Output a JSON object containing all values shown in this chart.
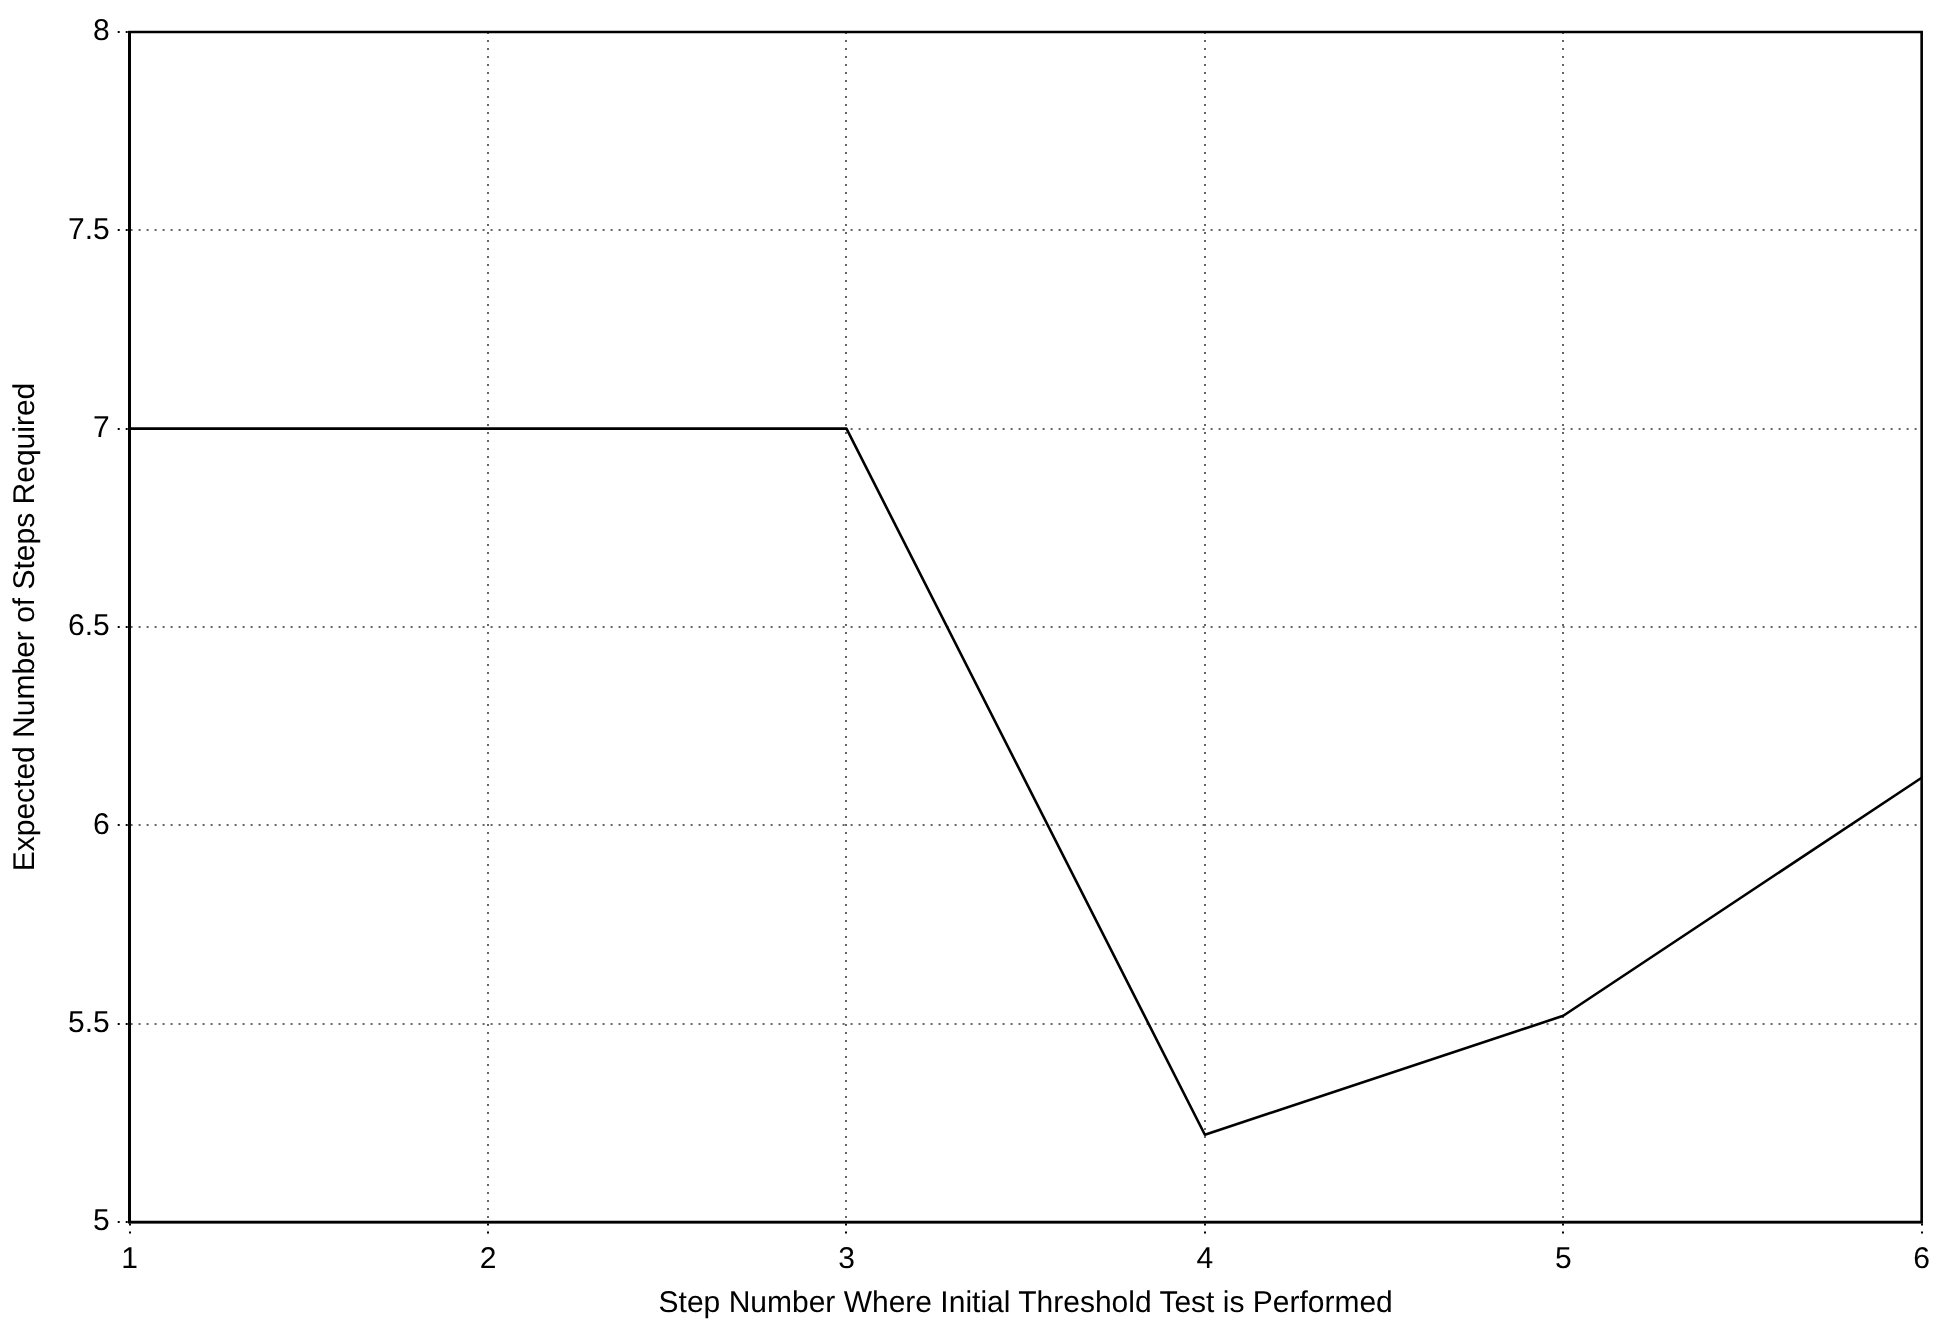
{
  "chart_data": {
    "type": "line",
    "xlabel": "Step Number Where Initial Threshold Test is Performed",
    "ylabel": "Expected Number of Steps Required",
    "x": [
      1,
      2,
      3,
      4,
      5,
      6
    ],
    "series": [
      {
        "color": "#000000",
        "values": [
          7,
          7,
          7,
          5.22,
          5.52,
          6.12
        ]
      }
    ],
    "xlim": [
      1,
      6
    ],
    "xticks": [
      1,
      2,
      3,
      4,
      5,
      6
    ],
    "ylim": [
      5,
      8
    ],
    "yticks": [
      5,
      5.5,
      6,
      6.5,
      7,
      7.5,
      8
    ],
    "grid": true,
    "legend": false,
    "marker": "none",
    "line_style": "solid"
  }
}
